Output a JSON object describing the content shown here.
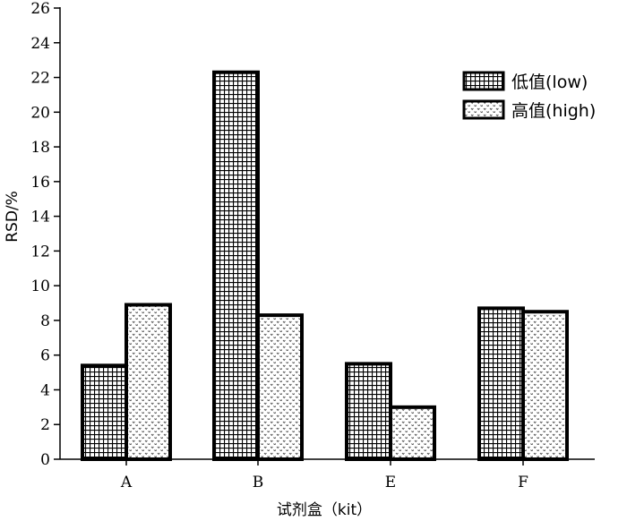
{
  "chart_data": {
    "type": "bar",
    "categories": [
      "A",
      "B",
      "E",
      "F"
    ],
    "series": [
      {
        "name": "低值(low)",
        "values": [
          5.4,
          22.3,
          5.5,
          8.7
        ],
        "pattern": "grid"
      },
      {
        "name": "高值(high)",
        "values": [
          8.9,
          8.3,
          3.0,
          8.5
        ],
        "pattern": "dots"
      }
    ],
    "xlabel": "试剂盒（kit）",
    "ylabel": "RSD/%",
    "ylim": [
      0,
      26
    ],
    "yticks": [
      "0",
      "2",
      "4",
      "6",
      "8",
      "10",
      "12",
      "14",
      "16",
      "18",
      "20",
      "22",
      "24",
      "26"
    ],
    "grid": false,
    "legend_position": "top-right",
    "colors": {
      "bar_fill": "#ffffff",
      "bar_stroke": "#000000",
      "axis": "#000000"
    }
  }
}
